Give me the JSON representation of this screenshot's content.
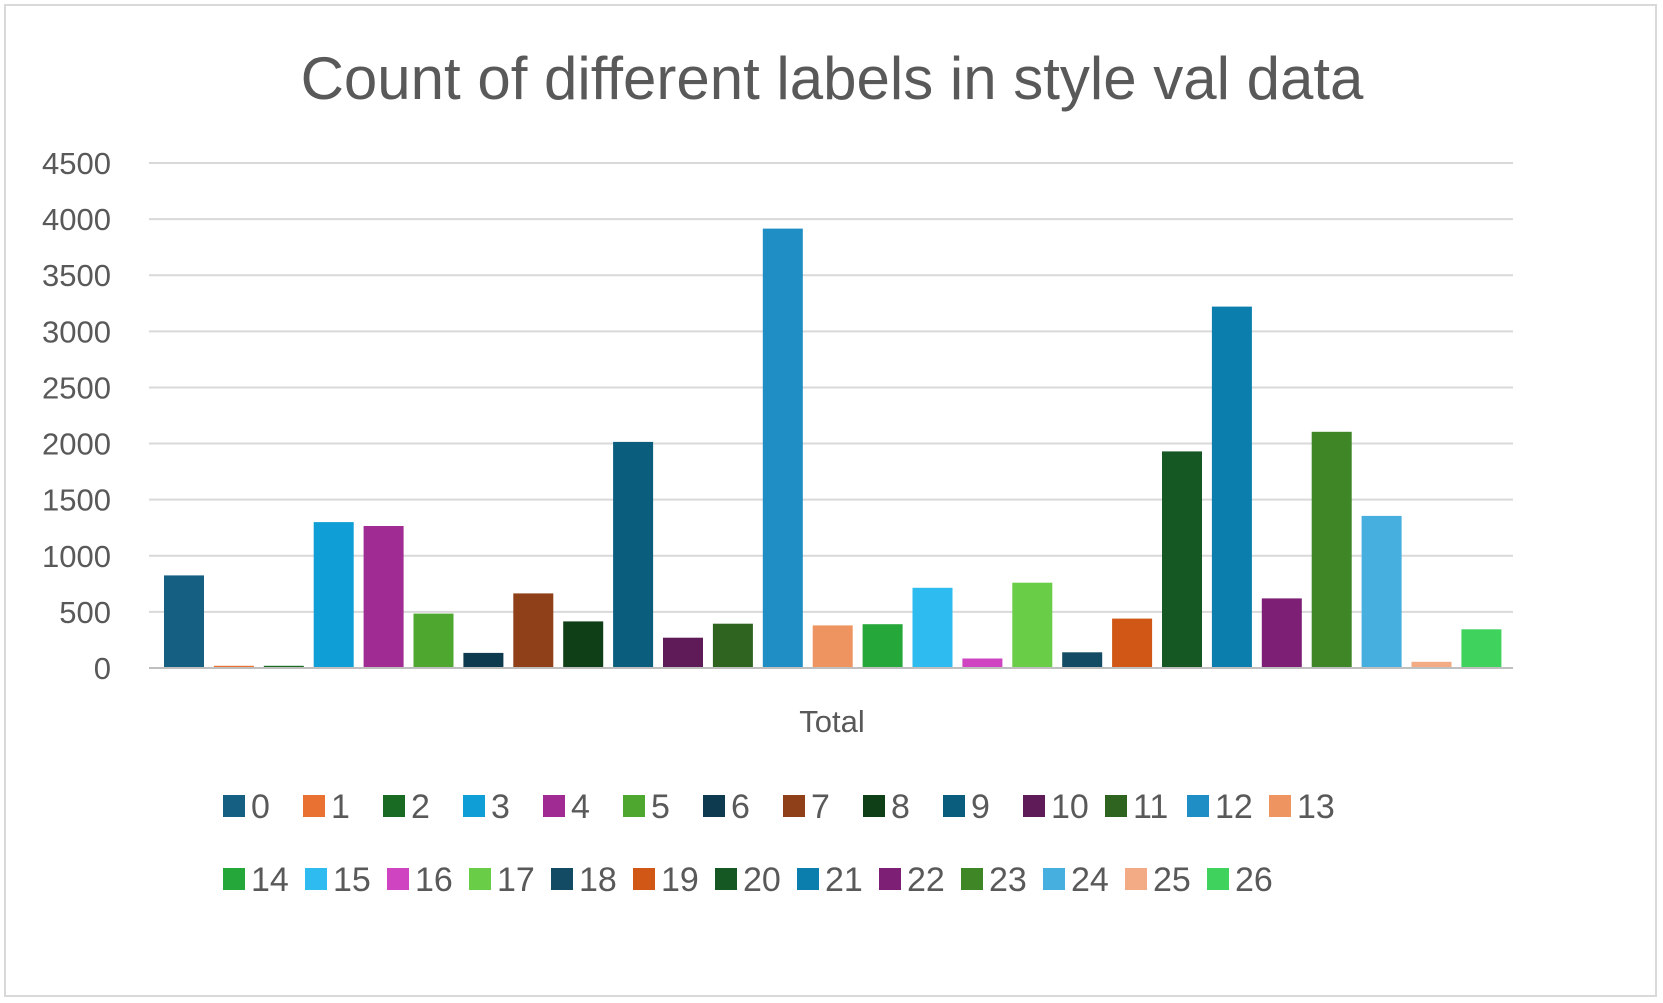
{
  "chart_data": {
    "type": "bar",
    "title": "Count of different labels in style val data",
    "xlabel": "",
    "ylabel": "",
    "categories": [
      "Total"
    ],
    "ylim": [
      0,
      4500
    ],
    "yticks": [
      0,
      500,
      1000,
      1500,
      2000,
      2500,
      3000,
      3500,
      4000,
      4500
    ],
    "grid": true,
    "legend_position": "bottom",
    "series": [
      {
        "name": "0",
        "values": [
          825
        ],
        "color": "#156082"
      },
      {
        "name": "1",
        "values": [
          20
        ],
        "color": "#E97132"
      },
      {
        "name": "2",
        "values": [
          20
        ],
        "color": "#196B24"
      },
      {
        "name": "3",
        "values": [
          1300
        ],
        "color": "#0F9ED5"
      },
      {
        "name": "4",
        "values": [
          1265
        ],
        "color": "#A02B93"
      },
      {
        "name": "5",
        "values": [
          485
        ],
        "color": "#4EA72E"
      },
      {
        "name": "6",
        "values": [
          135
        ],
        "color": "#0D3A4E"
      },
      {
        "name": "7",
        "values": [
          665
        ],
        "color": "#8F4019"
      },
      {
        "name": "8",
        "values": [
          415
        ],
        "color": "#0F3F16"
      },
      {
        "name": "9",
        "values": [
          2015
        ],
        "color": "#0B5D7E"
      },
      {
        "name": "10",
        "values": [
          270
        ],
        "color": "#5F1A58"
      },
      {
        "name": "11",
        "values": [
          395
        ],
        "color": "#2F6320"
      },
      {
        "name": "12",
        "values": [
          3915
        ],
        "color": "#1F8EC4"
      },
      {
        "name": "13",
        "values": [
          380
        ],
        "color": "#EE9460"
      },
      {
        "name": "14",
        "values": [
          390
        ],
        "color": "#26A73A"
      },
      {
        "name": "15",
        "values": [
          715
        ],
        "color": "#2EBCF0"
      },
      {
        "name": "16",
        "values": [
          85
        ],
        "color": "#CE44C1"
      },
      {
        "name": "17",
        "values": [
          760
        ],
        "color": "#6ACD47"
      },
      {
        "name": "18",
        "values": [
          140
        ],
        "color": "#134B64"
      },
      {
        "name": "19",
        "values": [
          440
        ],
        "color": "#D05716"
      },
      {
        "name": "20",
        "values": [
          1930
        ],
        "color": "#155823"
      },
      {
        "name": "21",
        "values": [
          3220
        ],
        "color": "#0B7EAE"
      },
      {
        "name": "22",
        "values": [
          620
        ],
        "color": "#7D1F74"
      },
      {
        "name": "23",
        "values": [
          2105
        ],
        "color": "#3E8626"
      },
      {
        "name": "24",
        "values": [
          1355
        ],
        "color": "#47AFE0"
      },
      {
        "name": "25",
        "values": [
          55
        ],
        "color": "#F2AB84"
      },
      {
        "name": "26",
        "values": [
          345
        ],
        "color": "#3FD35D"
      }
    ]
  }
}
